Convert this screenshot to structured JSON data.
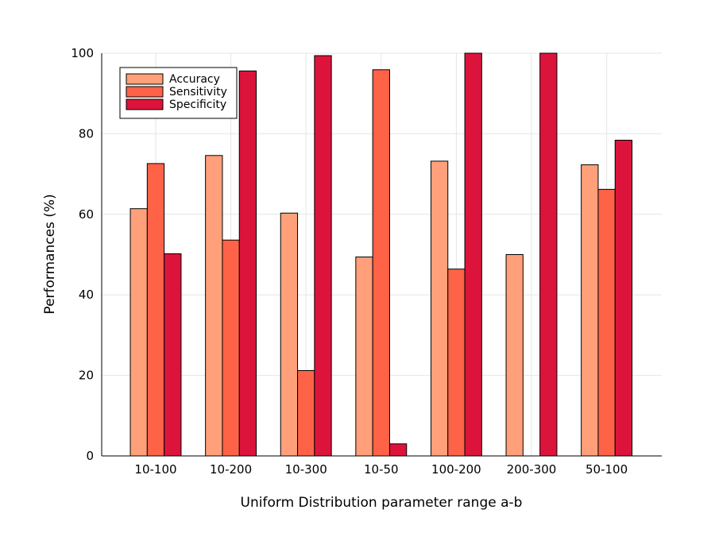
{
  "chart_data": {
    "type": "bar",
    "title": "",
    "xlabel": "Uniform Distribution parameter range a-b",
    "ylabel": "Performances (%)",
    "ylim": [
      0,
      100
    ],
    "yticks": [
      0,
      20,
      40,
      60,
      80,
      100
    ],
    "grid": true,
    "legend_position": "top-left",
    "categories": [
      "10-100",
      "10-200",
      "10-300",
      "10-50",
      "100-200",
      "200-300",
      "50-100"
    ],
    "series": [
      {
        "name": "Accuracy",
        "color": "#FFA07A",
        "values": [
          61.4,
          74.6,
          60.3,
          49.4,
          73.2,
          50.0,
          72.3
        ]
      },
      {
        "name": "Sensitivity",
        "color": "#FF6347",
        "values": [
          72.6,
          53.6,
          21.2,
          95.9,
          46.4,
          0.0,
          66.2
        ]
      },
      {
        "name": "Specificity",
        "color": "#DC143C",
        "values": [
          50.2,
          95.6,
          99.4,
          3.0,
          100.0,
          100.0,
          78.4
        ]
      }
    ]
  }
}
